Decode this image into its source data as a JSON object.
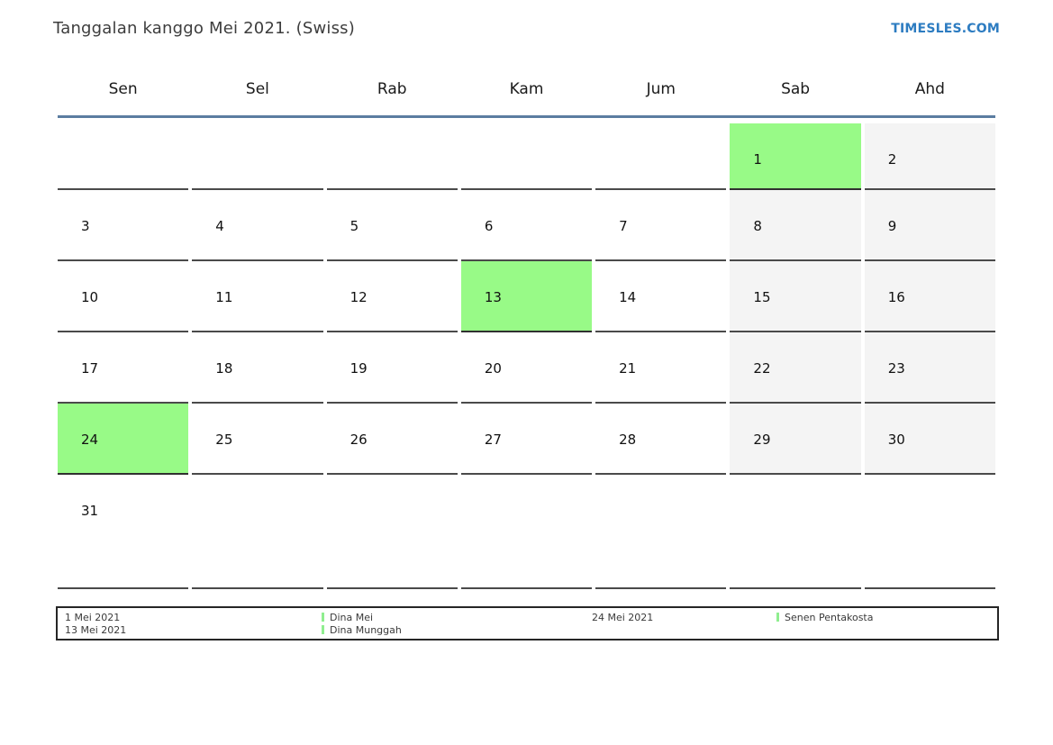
{
  "header": {
    "title": "Tanggalan kanggo Mei 2021. (Swiss)",
    "brand": "TIMESLES.COM"
  },
  "calendar": {
    "day_names": [
      "Sen",
      "Sel",
      "Rab",
      "Kam",
      "Jum",
      "Sab",
      "Ahd"
    ],
    "weeks": [
      [
        {
          "day": "",
          "type": "empty"
        },
        {
          "day": "",
          "type": "empty"
        },
        {
          "day": "",
          "type": "empty"
        },
        {
          "day": "",
          "type": "empty"
        },
        {
          "day": "",
          "type": "empty"
        },
        {
          "day": "1",
          "type": "holiday"
        },
        {
          "day": "2",
          "type": "weekend"
        }
      ],
      [
        {
          "day": "3",
          "type": "weekday"
        },
        {
          "day": "4",
          "type": "weekday"
        },
        {
          "day": "5",
          "type": "weekday"
        },
        {
          "day": "6",
          "type": "weekday"
        },
        {
          "day": "7",
          "type": "weekday"
        },
        {
          "day": "8",
          "type": "weekend"
        },
        {
          "day": "9",
          "type": "weekend"
        }
      ],
      [
        {
          "day": "10",
          "type": "weekday"
        },
        {
          "day": "11",
          "type": "weekday"
        },
        {
          "day": "12",
          "type": "weekday"
        },
        {
          "day": "13",
          "type": "holiday"
        },
        {
          "day": "14",
          "type": "weekday"
        },
        {
          "day": "15",
          "type": "weekend"
        },
        {
          "day": "16",
          "type": "weekend"
        }
      ],
      [
        {
          "day": "17",
          "type": "weekday"
        },
        {
          "day": "18",
          "type": "weekday"
        },
        {
          "day": "19",
          "type": "weekday"
        },
        {
          "day": "20",
          "type": "weekday"
        },
        {
          "day": "21",
          "type": "weekday"
        },
        {
          "day": "22",
          "type": "weekend"
        },
        {
          "day": "23",
          "type": "weekend"
        }
      ],
      [
        {
          "day": "24",
          "type": "holiday"
        },
        {
          "day": "25",
          "type": "weekday"
        },
        {
          "day": "26",
          "type": "weekday"
        },
        {
          "day": "27",
          "type": "weekday"
        },
        {
          "day": "28",
          "type": "weekday"
        },
        {
          "day": "29",
          "type": "weekend"
        },
        {
          "day": "30",
          "type": "weekend"
        }
      ],
      [
        {
          "day": "31",
          "type": "weekday"
        },
        {
          "day": "",
          "type": "empty"
        },
        {
          "day": "",
          "type": "empty"
        },
        {
          "day": "",
          "type": "empty"
        },
        {
          "day": "",
          "type": "empty"
        },
        {
          "day": "",
          "type": "empty"
        },
        {
          "day": "",
          "type": "empty"
        }
      ]
    ]
  },
  "legend": {
    "col1": [
      "1 Mei 2021",
      "13 Mei 2021"
    ],
    "col2": [
      "Dina Mei",
      "Dina Munggah"
    ],
    "col3": [
      "24 Mei 2021"
    ],
    "col4": [
      "Senen Pentakosta"
    ]
  },
  "colors": {
    "holiday_green": "#98fa87",
    "weekend_gray": "#f4f4f4",
    "header_rule_blue": "#5b7da1",
    "brand_blue": "#2d7cc1",
    "legend_marker_green": "#90ee90"
  }
}
